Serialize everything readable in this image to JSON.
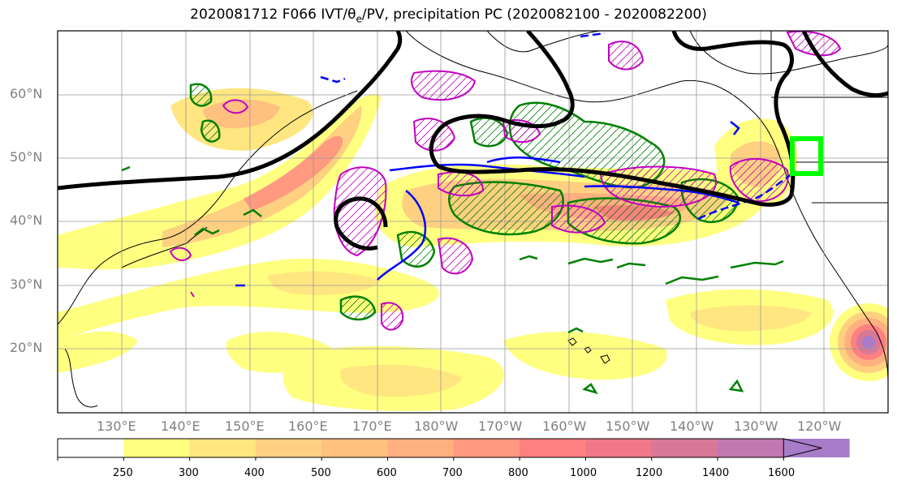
{
  "title": {
    "prefix": "2020081712 F066 IVT/θ",
    "sub": "e",
    "suffix": "/PV, precipitation PC (2020082100 - 2020082200)"
  },
  "map": {
    "region": "North Pacific",
    "lat_labels": [
      "60°N",
      "50°N",
      "40°N",
      "30°N",
      "20°N"
    ],
    "lon_labels": [
      "130°E",
      "140°E",
      "150°E",
      "160°E",
      "170°E",
      "180°W",
      "170°W",
      "160°W",
      "150°W",
      "140°W",
      "130°W",
      "120°W"
    ],
    "highlight_box_color": "#00ff00",
    "contour_colors": {
      "pv": "#000000",
      "theta_e": "#0000ff",
      "pc_positive": "#008000",
      "pc_negative": "#c000c0"
    }
  },
  "colorbar": {
    "ticks": [
      "250",
      "300",
      "400",
      "500",
      "600",
      "700",
      "800",
      "1000",
      "1200",
      "1400",
      "1600"
    ],
    "colors": [
      "#ffff80",
      "#ffe680",
      "#ffd080",
      "#ffc080",
      "#ffb080",
      "#ff9980",
      "#ff8080",
      "#f07888",
      "#d87898",
      "#c078b0",
      "#a87cc8"
    ]
  }
}
